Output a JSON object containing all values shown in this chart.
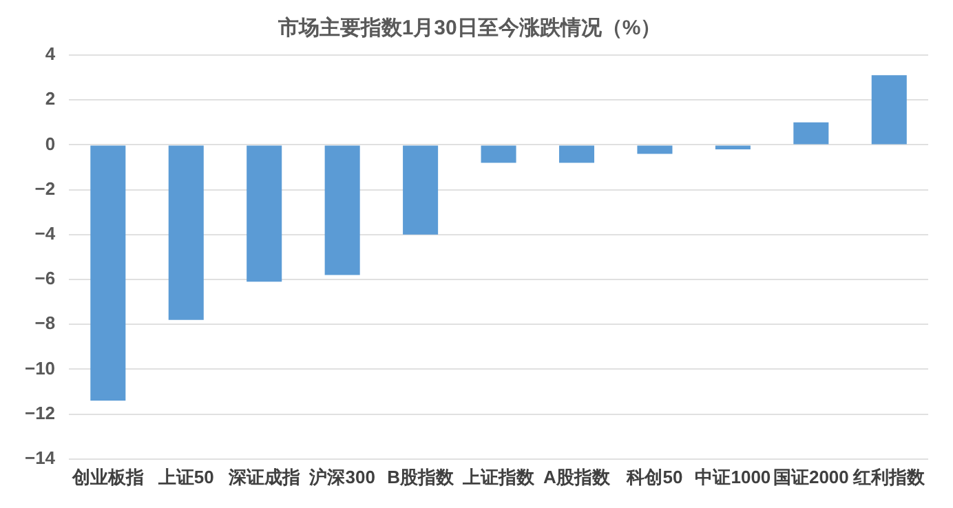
{
  "chart_data": {
    "type": "bar",
    "title": "市场主要指数1月30日至今涨跌情况（%）",
    "categories": [
      "创业板指",
      "上证50",
      "深证成指",
      "沪深300",
      "B股指数",
      "上证指数",
      "A股指数",
      "科创50",
      "中证1000",
      "国证2000",
      "红利指数"
    ],
    "values": [
      -11.4,
      -7.8,
      -6.1,
      -5.8,
      -4.0,
      -0.8,
      -0.8,
      -0.4,
      -0.2,
      1.0,
      3.1
    ],
    "color": "#5b9bd5",
    "ylim": [
      -14,
      4
    ],
    "yticks": [
      -14,
      -12,
      -10,
      -8,
      -6,
      -4,
      -2,
      0,
      2,
      4
    ],
    "grid": "y",
    "legend": false
  }
}
